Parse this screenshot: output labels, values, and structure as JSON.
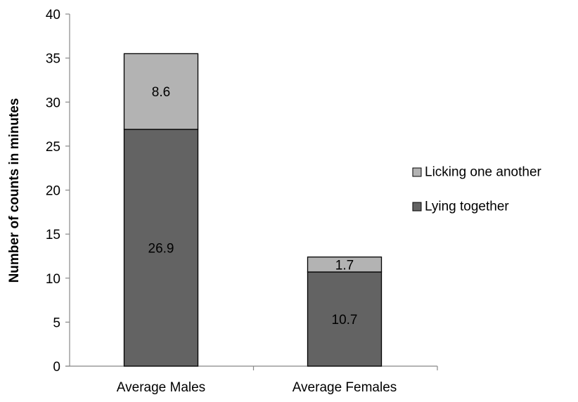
{
  "chart_data": {
    "type": "bar",
    "stacked": true,
    "title": "",
    "xlabel": "",
    "ylabel": "Number of counts in minutes",
    "ylim": [
      0,
      40
    ],
    "yticks": [
      0,
      5,
      10,
      15,
      20,
      25,
      30,
      35,
      40
    ],
    "grid": false,
    "legend_position": "right",
    "categories": [
      "Average Males",
      "Average Females"
    ],
    "series": [
      {
        "name": "Lying together",
        "values": [
          26.9,
          10.7
        ],
        "labels": [
          "26.9",
          "10.7"
        ],
        "color": "#636363"
      },
      {
        "name": "Licking one another",
        "values": [
          8.6,
          1.7
        ],
        "labels": [
          "8.6",
          "1.7"
        ],
        "color": "#b3b3b3"
      }
    ],
    "legend_order": [
      1,
      0
    ]
  }
}
